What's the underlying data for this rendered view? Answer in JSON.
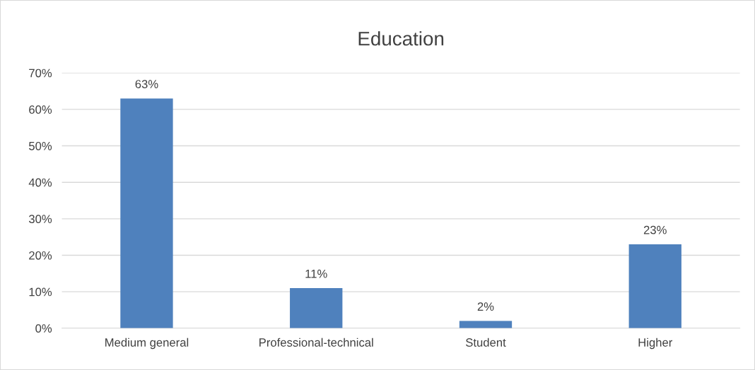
{
  "chart_data": {
    "type": "bar",
    "title": "Education",
    "categories": [
      "Medium general",
      "Professional-technical",
      "Student",
      "Higher"
    ],
    "values": [
      63,
      11,
      2,
      23
    ],
    "color": "#4f81bd",
    "value_labels": [
      "63%",
      "11%",
      "2%",
      "23%"
    ],
    "ylim": [
      0,
      70
    ],
    "yticks": [
      {
        "value": 0,
        "label": "0%"
      },
      {
        "value": 10,
        "label": "10%"
      },
      {
        "value": 20,
        "label": "20%"
      },
      {
        "value": 30,
        "label": "30%"
      },
      {
        "value": 40,
        "label": "40%"
      },
      {
        "value": 50,
        "label": "50%"
      },
      {
        "value": 60,
        "label": "60%"
      },
      {
        "value": 70,
        "label": "70%"
      }
    ],
    "grid": "y"
  }
}
